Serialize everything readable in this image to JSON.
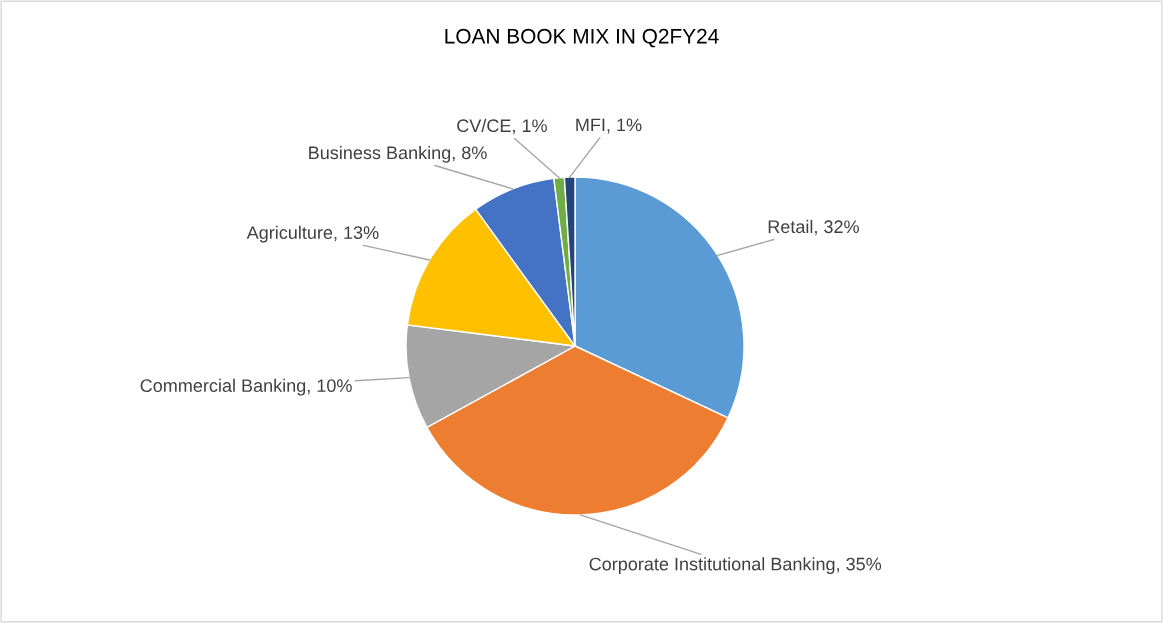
{
  "chart_data": {
    "type": "pie",
    "title": "LOAN BOOK MIX IN Q2FY24",
    "categories": [
      "Retail",
      "Corporate Institutional Banking",
      "Commercial Banking",
      "Agriculture",
      "Business Banking",
      "CV/CE",
      "MFI"
    ],
    "values": [
      32,
      35,
      10,
      13,
      8,
      1,
      1
    ],
    "value_labels": [
      "32%",
      "35%",
      "10%",
      "13%",
      "8%",
      "1%",
      "1%"
    ],
    "colors": [
      "#5b9bd5",
      "#ed7d31",
      "#a5a5a5",
      "#ffc000",
      "#4472c4",
      "#70ad47",
      "#264478"
    ],
    "legend": false
  }
}
